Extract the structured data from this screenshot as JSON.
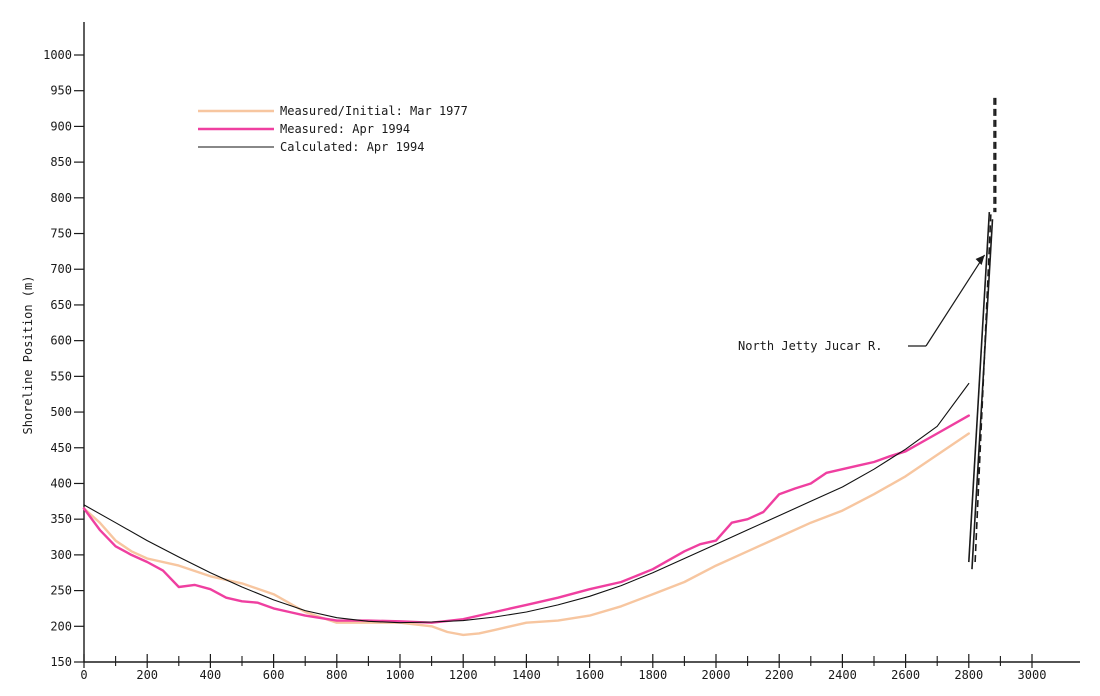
{
  "chart_data": {
    "type": "line",
    "title": "",
    "xlabel": "",
    "ylabel": "Shoreline Position (m)",
    "xlim": [
      0,
      3000
    ],
    "ylim": [
      150,
      1000
    ],
    "x_ticks": [
      0,
      200,
      400,
      600,
      800,
      1000,
      1200,
      1400,
      1600,
      1800,
      2000,
      2200,
      2400,
      2600,
      2800,
      3000
    ],
    "y_ticks": [
      150,
      200,
      250,
      300,
      350,
      400,
      450,
      500,
      550,
      600,
      650,
      700,
      750,
      800,
      850,
      900,
      950,
      1000
    ],
    "grid": false,
    "legend_position": "top-left",
    "series": [
      {
        "name": "Measured/Initial:  Mar 1977",
        "color": "#f7c6a0",
        "x": [
          0,
          50,
          100,
          150,
          200,
          300,
          400,
          500,
          600,
          700,
          800,
          900,
          1000,
          1100,
          1150,
          1200,
          1250,
          1300,
          1400,
          1500,
          1600,
          1700,
          1800,
          1900,
          2000,
          2100,
          2200,
          2300,
          2400,
          2500,
          2600,
          2700,
          2800
        ],
        "y": [
          365,
          345,
          320,
          305,
          295,
          285,
          270,
          260,
          245,
          220,
          205,
          205,
          205,
          200,
          192,
          188,
          190,
          195,
          205,
          208,
          215,
          228,
          245,
          262,
          285,
          305,
          325,
          345,
          362,
          385,
          410,
          440,
          470
        ]
      },
      {
        "name": "Measured:  Apr 1994",
        "color": "#ef3fa0",
        "x": [
          0,
          50,
          100,
          150,
          200,
          250,
          300,
          350,
          400,
          450,
          500,
          550,
          600,
          650,
          700,
          800,
          900,
          1000,
          1100,
          1200,
          1300,
          1400,
          1500,
          1600,
          1700,
          1800,
          1900,
          1950,
          2000,
          2050,
          2100,
          2150,
          2200,
          2250,
          2300,
          2350,
          2400,
          2450,
          2500,
          2550,
          2600,
          2700,
          2800
        ],
        "y": [
          365,
          335,
          312,
          300,
          290,
          278,
          255,
          258,
          252,
          240,
          235,
          233,
          225,
          220,
          215,
          208,
          208,
          207,
          205,
          210,
          220,
          230,
          240,
          252,
          262,
          280,
          305,
          315,
          320,
          345,
          350,
          360,
          385,
          393,
          400,
          415,
          420,
          425,
          430,
          438,
          445,
          470,
          495
        ]
      },
      {
        "name": "Calculated:  Apr 1994",
        "color": "#111111",
        "x": [
          0,
          100,
          200,
          300,
          400,
          500,
          600,
          700,
          800,
          900,
          1000,
          1100,
          1200,
          1300,
          1400,
          1500,
          1600,
          1700,
          1800,
          1900,
          2000,
          2100,
          2200,
          2300,
          2400,
          2500,
          2600,
          2700,
          2800
        ],
        "y": [
          370,
          345,
          320,
          297,
          275,
          255,
          237,
          222,
          212,
          207,
          205,
          206,
          208,
          213,
          220,
          230,
          242,
          257,
          275,
          295,
          315,
          335,
          355,
          375,
          395,
          420,
          448,
          480,
          540
        ]
      }
    ],
    "annotation": {
      "text": "North Jetty Jucar R.",
      "x": 2650,
      "y": 595,
      "arrow_to": [
        2850,
        720
      ]
    },
    "jetty": {
      "lines": [
        {
          "x1": 2800,
          "y1": 290,
          "x2": 2865,
          "y2": 780,
          "style": "solid"
        },
        {
          "x1": 2810,
          "y1": 280,
          "x2": 2875,
          "y2": 770,
          "style": "solid"
        },
        {
          "x1": 2820,
          "y1": 290,
          "x2": 2870,
          "y2": 780,
          "style": "dashed"
        },
        {
          "x1": 2880,
          "y1": 940,
          "x2": 2880,
          "y2": 780,
          "style": "dashed"
        },
        {
          "x1": 2885,
          "y1": 940,
          "x2": 2885,
          "y2": 780,
          "style": "dashed"
        }
      ],
      "color": "#1a1a1a"
    }
  }
}
